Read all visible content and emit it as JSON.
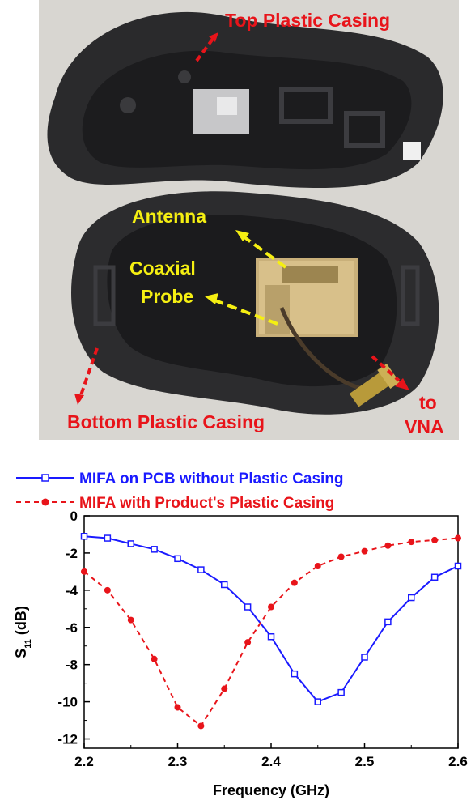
{
  "photo": {
    "labels": {
      "top_casing": "Top Plastic Casing",
      "antenna": "Antenna",
      "coaxial": "Coaxial",
      "probe": "Probe",
      "bottom_casing": "Bottom Plastic Casing",
      "to": "to",
      "vna": "VNA"
    }
  },
  "colors": {
    "label_red": "#e8141a",
    "label_yellow": "#f5ef12",
    "series_blue": "#1a1aff",
    "series_red": "#e8141a"
  },
  "chart_data": {
    "type": "line",
    "xlabel": "Frequency (GHz)",
    "ylabel": "S11 (dB)",
    "xlim": [
      2.2,
      2.6
    ],
    "ylim": [
      -12.5,
      0
    ],
    "xticks": [
      "2.2",
      "2.3",
      "2.4",
      "2.5",
      "2.6"
    ],
    "yticks": [
      "0",
      "-2",
      "-4",
      "-6",
      "-8",
      "-10",
      "-12"
    ],
    "legend_position": "top",
    "grid": false,
    "series": [
      {
        "name": "MIFA on PCB without Plastic Casing",
        "style": "solid, open square markers",
        "color": "#1a1aff",
        "x": [
          2.2,
          2.225,
          2.25,
          2.275,
          2.3,
          2.325,
          2.35,
          2.375,
          2.4,
          2.425,
          2.45,
          2.475,
          2.5,
          2.525,
          2.55,
          2.575,
          2.6
        ],
        "y": [
          -1.1,
          -1.2,
          -1.5,
          -1.8,
          -2.3,
          -2.9,
          -3.7,
          -4.9,
          -6.5,
          -8.5,
          -10.0,
          -9.5,
          -7.6,
          -5.7,
          -4.4,
          -3.3,
          -2.7
        ]
      },
      {
        "name": "MIFA with Product's Plastic Casing",
        "style": "dashed, filled circle markers",
        "color": "#e8141a",
        "x": [
          2.2,
          2.225,
          2.25,
          2.275,
          2.3,
          2.325,
          2.35,
          2.375,
          2.4,
          2.425,
          2.45,
          2.475,
          2.5,
          2.525,
          2.55,
          2.575,
          2.6
        ],
        "y": [
          -3.0,
          -4.0,
          -5.6,
          -7.7,
          -10.3,
          -11.3,
          -9.3,
          -6.8,
          -4.9,
          -3.6,
          -2.7,
          -2.2,
          -1.9,
          -1.6,
          -1.4,
          -1.3,
          -1.2
        ]
      }
    ]
  }
}
